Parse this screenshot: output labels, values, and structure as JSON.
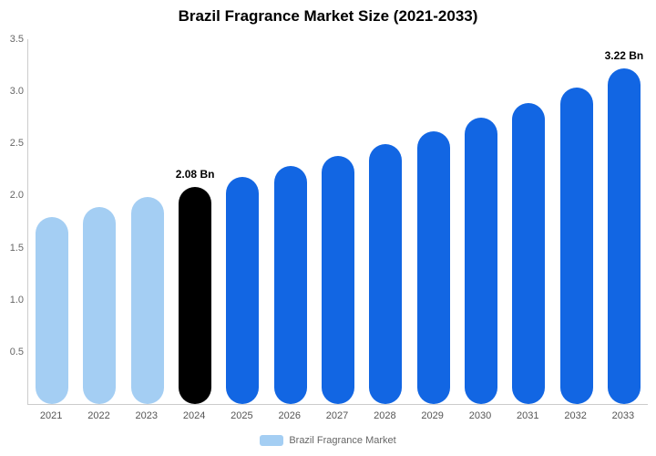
{
  "chart_data": {
    "type": "bar",
    "title": "Brazil Fragrance Market Size (2021-2033)",
    "categories": [
      "2021",
      "2022",
      "2023",
      "2024",
      "2025",
      "2026",
      "2027",
      "2028",
      "2029",
      "2030",
      "2031",
      "2032",
      "2033"
    ],
    "values": [
      1.79,
      1.89,
      1.99,
      2.08,
      2.18,
      2.28,
      2.38,
      2.49,
      2.62,
      2.75,
      2.89,
      3.04,
      3.22
    ],
    "unit": "Bn",
    "ylim": [
      0,
      3.5
    ],
    "ytick_labels": [
      "0.5",
      "1.0",
      "1.5",
      "2.0",
      "2.5",
      "3.0",
      "3.5"
    ],
    "ytick_values": [
      0.5,
      1.0,
      1.5,
      2.0,
      2.5,
      3.0,
      3.5
    ],
    "grid": false,
    "bar_colors": [
      "#A4CEF3",
      "#A4CEF3",
      "#A4CEF3",
      "#000000",
      "#1266E3",
      "#1266E3",
      "#1266E3",
      "#1266E3",
      "#1266E3",
      "#1266E3",
      "#1266E3",
      "#1266E3",
      "#1266E3"
    ],
    "colors": {
      "historical": "#A4CEF3",
      "highlight": "#000000",
      "forecast": "#1266E3",
      "axis_line": "#cccccc"
    },
    "annotations": [
      {
        "index": 3,
        "text": "2.08 Bn"
      },
      {
        "index": 12,
        "text": "3.22 Bn"
      }
    ],
    "legend": [
      {
        "label": "Brazil Fragrance Market",
        "color": "#A4CEF3"
      }
    ],
    "legend_position": "bottom"
  }
}
